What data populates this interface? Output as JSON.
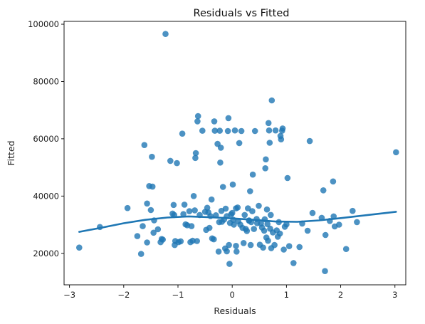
{
  "chart_data": {
    "type": "scatter",
    "title": "Residuals vs Fitted",
    "xlabel": "Residuals",
    "ylabel": "Fitted",
    "xlim": [
      -3.1,
      3.2
    ],
    "ylim": [
      9000,
      101000
    ],
    "x_ticks": [
      -3,
      -2,
      -1,
      0,
      1,
      2,
      3
    ],
    "y_ticks": [
      20000,
      40000,
      60000,
      80000,
      100000
    ],
    "grid": false,
    "legend": "none",
    "colors": {
      "points": "#1f77b4",
      "line": "#1f77b4",
      "axes": "#000000"
    },
    "series": [
      {
        "kind": "points",
        "points": [
          [
            -2.82,
            22000
          ],
          [
            -2.44,
            29200
          ],
          [
            -1.93,
            35800
          ],
          [
            -1.75,
            26000
          ],
          [
            -1.68,
            19800
          ],
          [
            -1.65,
            29500
          ],
          [
            -1.62,
            57800
          ],
          [
            -1.57,
            37400
          ],
          [
            -1.57,
            23800
          ],
          [
            -1.53,
            43500
          ],
          [
            -1.5,
            35100
          ],
          [
            -1.48,
            53700
          ],
          [
            -1.47,
            43300
          ],
          [
            -1.45,
            27200
          ],
          [
            -1.44,
            31500
          ],
          [
            -1.37,
            28400
          ],
          [
            -1.32,
            23900
          ],
          [
            -1.3,
            25000
          ],
          [
            -1.28,
            24800
          ],
          [
            -1.23,
            96600
          ],
          [
            -1.14,
            52300
          ],
          [
            -1.1,
            33900
          ],
          [
            -1.08,
            36900
          ],
          [
            -1.07,
            33400
          ],
          [
            -1.06,
            22900
          ],
          [
            -1.05,
            24300
          ],
          [
            -1.02,
            51500
          ],
          [
            -0.99,
            23900
          ],
          [
            -0.95,
            24200
          ],
          [
            -0.92,
            61800
          ],
          [
            -0.9,
            33700
          ],
          [
            -0.88,
            37000
          ],
          [
            -0.86,
            30100
          ],
          [
            -0.83,
            29800
          ],
          [
            -0.79,
            34700
          ],
          [
            -0.77,
            23900
          ],
          [
            -0.75,
            29500
          ],
          [
            -0.73,
            24400
          ],
          [
            -0.71,
            40000
          ],
          [
            -0.69,
            35000
          ],
          [
            -0.68,
            53300
          ],
          [
            -0.67,
            55000
          ],
          [
            -0.65,
            24300
          ],
          [
            -0.64,
            66100
          ],
          [
            -0.63,
            67900
          ],
          [
            -0.6,
            33400
          ],
          [
            -0.55,
            62800
          ],
          [
            -0.5,
            34500
          ],
          [
            -0.48,
            28200
          ],
          [
            -0.46,
            35900
          ],
          [
            -0.44,
            34300
          ],
          [
            -0.42,
            28900
          ],
          [
            -0.4,
            33000
          ],
          [
            -0.38,
            38800
          ],
          [
            -0.37,
            25200
          ],
          [
            -0.34,
            24900
          ],
          [
            -0.33,
            66100
          ],
          [
            -0.32,
            62800
          ],
          [
            -0.3,
            33300
          ],
          [
            -0.27,
            58200
          ],
          [
            -0.25,
            20600
          ],
          [
            -0.24,
            30900
          ],
          [
            -0.23,
            62800
          ],
          [
            -0.22,
            51700
          ],
          [
            -0.21,
            56900
          ],
          [
            -0.2,
            34800
          ],
          [
            -0.19,
            31000
          ],
          [
            -0.17,
            43200
          ],
          [
            -0.15,
            31800
          ],
          [
            -0.13,
            21700
          ],
          [
            -0.12,
            35600
          ],
          [
            -0.1,
            20700
          ],
          [
            -0.1,
            33000
          ],
          [
            -0.08,
            62700
          ],
          [
            -0.07,
            67200
          ],
          [
            -0.06,
            22900
          ],
          [
            -0.05,
            16300
          ],
          [
            -0.04,
            30600
          ],
          [
            -0.02,
            33600
          ],
          [
            0.0,
            34100
          ],
          [
            0.01,
            44000
          ],
          [
            0.02,
            31700
          ],
          [
            0.03,
            30000
          ],
          [
            0.05,
            62900
          ],
          [
            0.07,
            35700
          ],
          [
            0.07,
            22600
          ],
          [
            0.08,
            20600
          ],
          [
            0.1,
            36000
          ],
          [
            0.11,
            31200
          ],
          [
            0.13,
            58500
          ],
          [
            0.15,
            30000
          ],
          [
            0.17,
            62700
          ],
          [
            0.19,
            28900
          ],
          [
            0.21,
            23600
          ],
          [
            0.23,
            33400
          ],
          [
            0.25,
            28500
          ],
          [
            0.27,
            27800
          ],
          [
            0.29,
            35700
          ],
          [
            0.31,
            31400
          ],
          [
            0.31,
            31500
          ],
          [
            0.33,
            41700
          ],
          [
            0.34,
            22900
          ],
          [
            0.35,
            30900
          ],
          [
            0.37,
            34700
          ],
          [
            0.38,
            47500
          ],
          [
            0.4,
            28500
          ],
          [
            0.42,
            62700
          ],
          [
            0.45,
            32000
          ],
          [
            0.46,
            30500
          ],
          [
            0.49,
            36600
          ],
          [
            0.51,
            23000
          ],
          [
            0.53,
            30400
          ],
          [
            0.55,
            29000
          ],
          [
            0.57,
            22000
          ],
          [
            0.59,
            27900
          ],
          [
            0.6,
            31900
          ],
          [
            0.61,
            49700
          ],
          [
            0.62,
            52800
          ],
          [
            0.63,
            25500
          ],
          [
            0.64,
            35300
          ],
          [
            0.65,
            30200
          ],
          [
            0.66,
            24400
          ],
          [
            0.67,
            65500
          ],
          [
            0.68,
            62900
          ],
          [
            0.69,
            58600
          ],
          [
            0.7,
            28600
          ],
          [
            0.71,
            33400
          ],
          [
            0.72,
            21800
          ],
          [
            0.73,
            73400
          ],
          [
            0.75,
            27300
          ],
          [
            0.78,
            22900
          ],
          [
            0.8,
            62900
          ],
          [
            0.82,
            28000
          ],
          [
            0.84,
            25800
          ],
          [
            0.86,
            30900
          ],
          [
            0.88,
            26900
          ],
          [
            0.89,
            61000
          ],
          [
            0.9,
            59800
          ],
          [
            0.92,
            62800
          ],
          [
            0.93,
            63600
          ],
          [
            0.95,
            21300
          ],
          [
            0.97,
            29300
          ],
          [
            1.0,
            30100
          ],
          [
            1.02,
            46300
          ],
          [
            1.05,
            22500
          ],
          [
            1.13,
            16600
          ],
          [
            1.24,
            22200
          ],
          [
            1.29,
            30400
          ],
          [
            1.39,
            27900
          ],
          [
            1.43,
            59200
          ],
          [
            1.48,
            34100
          ],
          [
            1.65,
            32400
          ],
          [
            1.68,
            42000
          ],
          [
            1.71,
            13800
          ],
          [
            1.72,
            26400
          ],
          [
            1.8,
            31300
          ],
          [
            1.86,
            45100
          ],
          [
            1.87,
            32900
          ],
          [
            1.89,
            29400
          ],
          [
            1.97,
            30000
          ],
          [
            2.1,
            21500
          ],
          [
            2.22,
            34800
          ],
          [
            2.3,
            30900
          ],
          [
            3.02,
            55300
          ]
        ]
      },
      {
        "kind": "line",
        "points": [
          [
            -2.82,
            27500
          ],
          [
            -2.4,
            29000
          ],
          [
            -2.0,
            30500
          ],
          [
            -1.6,
            31700
          ],
          [
            -1.2,
            32500
          ],
          [
            -0.8,
            32900
          ],
          [
            -0.4,
            32600
          ],
          [
            0.0,
            32200
          ],
          [
            0.4,
            31700
          ],
          [
            0.8,
            31100
          ],
          [
            1.2,
            31000
          ],
          [
            1.6,
            31500
          ],
          [
            2.0,
            32300
          ],
          [
            2.5,
            33400
          ],
          [
            3.02,
            34500
          ]
        ]
      }
    ]
  }
}
